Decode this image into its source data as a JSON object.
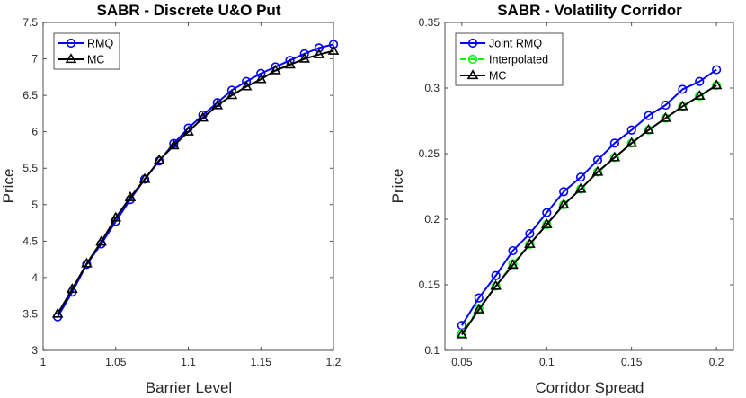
{
  "chart_data": [
    {
      "type": "line",
      "title": "SABR - Discrete U&O Put",
      "xlabel": "Barrier Level",
      "ylabel": "Price",
      "xlim": [
        1,
        1.2
      ],
      "ylim": [
        3,
        7.5
      ],
      "xticks": [
        1,
        1.05,
        1.1,
        1.15,
        1.2
      ],
      "xtick_labels": [
        "1",
        "1.05",
        "1.1",
        "1.15",
        "1.2"
      ],
      "yticks": [
        3,
        3.5,
        4,
        4.5,
        5,
        5.5,
        6,
        6.5,
        7,
        7.5
      ],
      "ytick_labels": [
        "3",
        "3.5",
        "4",
        "4.5",
        "5",
        "5.5",
        "6",
        "6.5",
        "7",
        "7.5"
      ],
      "legend_position": "top-left",
      "x": [
        1.01,
        1.02,
        1.03,
        1.04,
        1.05,
        1.06,
        1.07,
        1.08,
        1.09,
        1.1,
        1.11,
        1.12,
        1.13,
        1.14,
        1.15,
        1.16,
        1.17,
        1.18,
        1.19,
        1.2
      ],
      "series": [
        {
          "name": "RMQ",
          "color": "#0000ff",
          "marker": "circle",
          "values": [
            3.46,
            3.8,
            4.18,
            4.46,
            4.77,
            5.07,
            5.35,
            5.6,
            5.84,
            6.05,
            6.23,
            6.4,
            6.57,
            6.69,
            6.8,
            6.89,
            6.98,
            7.07,
            7.15,
            7.2
          ]
        },
        {
          "name": "MC",
          "color": "#000000",
          "marker": "triangle",
          "values": [
            3.5,
            3.84,
            4.19,
            4.49,
            4.82,
            5.1,
            5.35,
            5.61,
            5.81,
            6.0,
            6.19,
            6.36,
            6.5,
            6.62,
            6.72,
            6.84,
            6.92,
            7.0,
            7.06,
            7.11
          ]
        }
      ]
    },
    {
      "type": "line",
      "title": "SABR - Volatility Corridor",
      "xlabel": "Corridor Spread",
      "ylabel": "Price",
      "xlim": [
        0.04,
        0.21
      ],
      "ylim": [
        0.1,
        0.35
      ],
      "xticks": [
        0.05,
        0.1,
        0.15,
        0.2
      ],
      "xtick_labels": [
        "0.05",
        "0.1",
        "0.15",
        "0.2"
      ],
      "yticks": [
        0.1,
        0.15,
        0.2,
        0.25,
        0.3,
        0.35
      ],
      "ytick_labels": [
        "0.1",
        "0.15",
        "0.2",
        "0.25",
        "0.3",
        "0.35"
      ],
      "legend_position": "top-left",
      "x": [
        0.05,
        0.06,
        0.07,
        0.08,
        0.09,
        0.1,
        0.11,
        0.12,
        0.13,
        0.14,
        0.15,
        0.16,
        0.17,
        0.18,
        0.19,
        0.2
      ],
      "series": [
        {
          "name": "Joint RMQ",
          "color": "#0000ff",
          "marker": "circle",
          "values": [
            0.119,
            0.14,
            0.157,
            0.176,
            0.189,
            0.205,
            0.221,
            0.232,
            0.245,
            0.258,
            0.268,
            0.279,
            0.287,
            0.299,
            0.305,
            0.314
          ]
        },
        {
          "name": "Interpolated",
          "color": "#00ff00",
          "marker": "circle",
          "linestyle": "dashed",
          "values": [
            0.113,
            0.132,
            0.149,
            0.166,
            0.181,
            0.196,
            0.211,
            0.223,
            0.236,
            0.247,
            0.258,
            0.268,
            0.277,
            0.286,
            0.294,
            0.302
          ]
        },
        {
          "name": "MC",
          "color": "#000000",
          "marker": "triangle",
          "values": [
            0.112,
            0.131,
            0.149,
            0.165,
            0.181,
            0.196,
            0.211,
            0.223,
            0.236,
            0.247,
            0.258,
            0.268,
            0.277,
            0.286,
            0.294,
            0.302
          ]
        }
      ]
    }
  ]
}
